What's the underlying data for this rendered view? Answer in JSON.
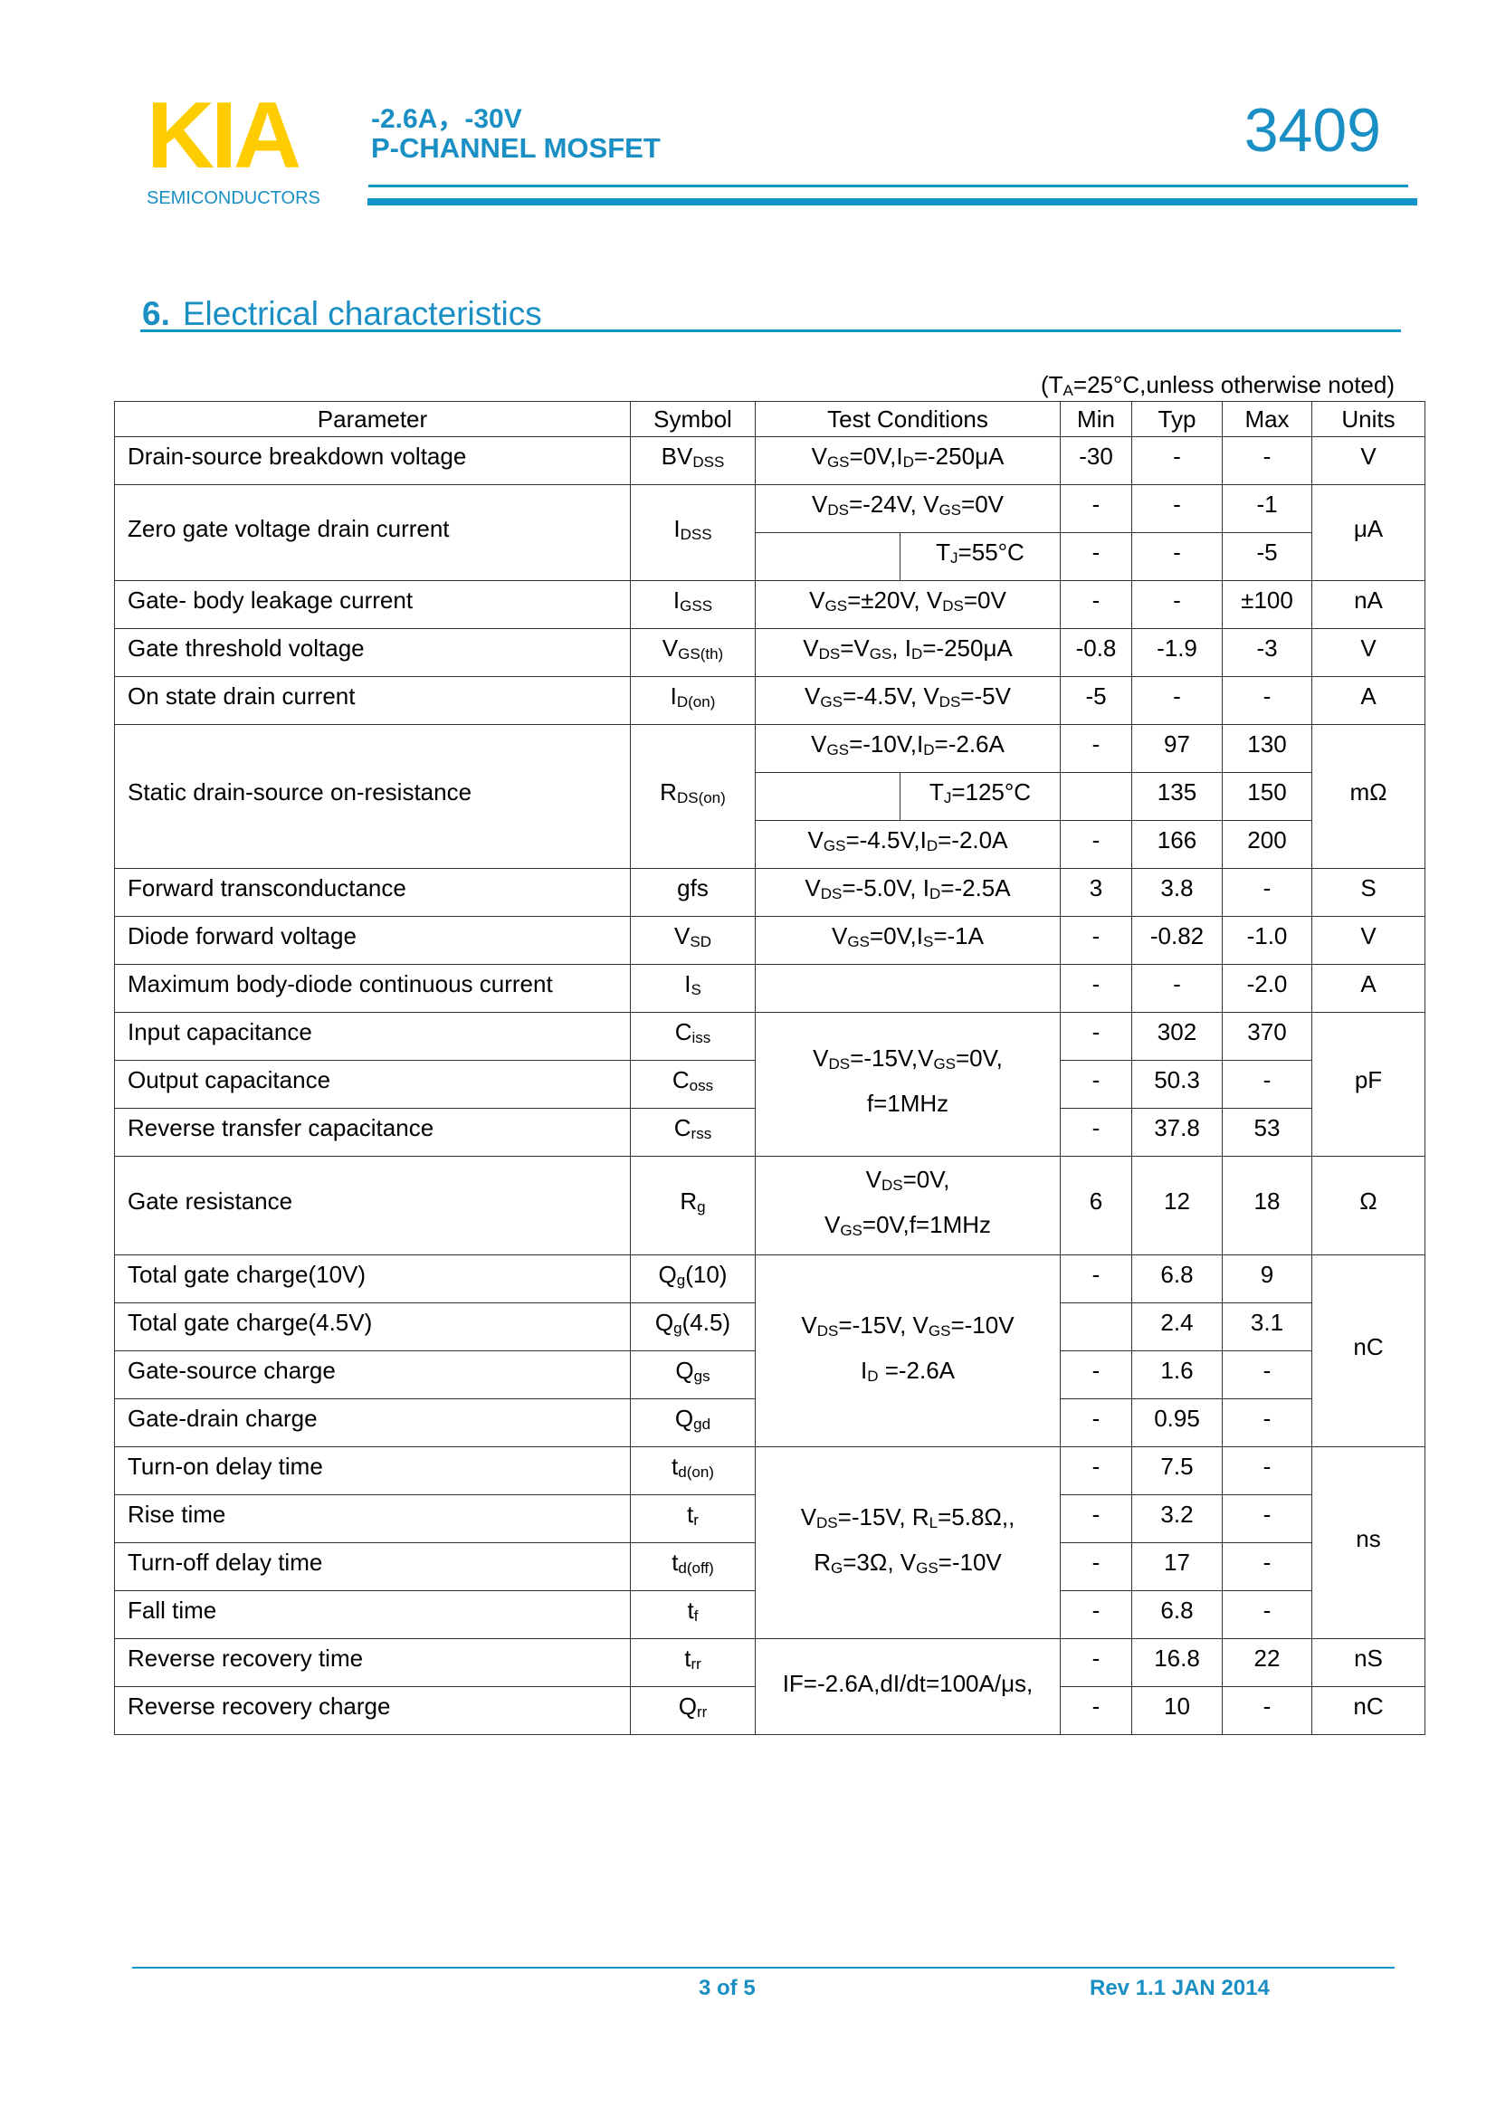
{
  "header": {
    "logo": "KIA",
    "logo_sub": "SEMICONDUCTORS",
    "spec_line1": "-2.6A，-30V",
    "spec_line2": "P-CHANNEL MOSFET",
    "part_number": "3409"
  },
  "section": {
    "number": "6.",
    "title": "Electrical characteristics"
  },
  "note": [
    {
      "t": "(T"
    },
    {
      "sub": "A"
    },
    {
      "t": "=25°C,unless otherwise noted)"
    }
  ],
  "colors": {
    "brand_blue": "#1a8fc4",
    "logo_yellow": "#FFCC00"
  },
  "table": {
    "headers": [
      "Parameter",
      "Symbol",
      "Test Conditions",
      "Min",
      "Typ",
      "Max",
      "Units"
    ],
    "rows": [
      {
        "param": "Drain-source breakdown voltage",
        "sym": [
          {
            "t": "BV"
          },
          {
            "sub": "DSS"
          }
        ],
        "cond": [
          {
            "t": "V"
          },
          {
            "sub": "GS"
          },
          {
            "t": "=0V,I"
          },
          {
            "sub": "D"
          },
          {
            "t": "=-250μA"
          }
        ],
        "min": "-30",
        "typ": "-",
        "max": "-",
        "unit": "V"
      },
      {
        "param": "Zero gate voltage drain current",
        "sym": [
          {
            "t": "I"
          },
          {
            "sub": "DSS"
          }
        ],
        "cond": [
          {
            "t": "V"
          },
          {
            "sub": "DS"
          },
          {
            "t": "=-24V, V"
          },
          {
            "sub": "GS"
          },
          {
            "t": "=0V"
          }
        ],
        "min": "-",
        "typ": "-",
        "max": "-1",
        "unit": "μA",
        "cond2": [
          {
            "t": "T"
          },
          {
            "sub": "J"
          },
          {
            "t": "=55°C"
          }
        ],
        "min2": "-",
        "typ2": "-",
        "max2": "-5"
      },
      {
        "param": "Gate- body leakage current",
        "sym": [
          {
            "t": "I"
          },
          {
            "sub": "GSS"
          }
        ],
        "cond": [
          {
            "t": "V"
          },
          {
            "sub": "GS"
          },
          {
            "t": "=±20V, V"
          },
          {
            "sub": "DS"
          },
          {
            "t": "=0V"
          }
        ],
        "min": "-",
        "typ": "-",
        "max": "±100",
        "unit": "nA"
      },
      {
        "param": "Gate threshold voltage",
        "sym": [
          {
            "t": "V"
          },
          {
            "sub": "GS(th)"
          }
        ],
        "cond": [
          {
            "t": "V"
          },
          {
            "sub": "DS"
          },
          {
            "t": "=V"
          },
          {
            "sub": "GS"
          },
          {
            "t": ", I"
          },
          {
            "sub": "D"
          },
          {
            "t": "=-250μA"
          }
        ],
        "min": "-0.8",
        "typ": "-1.9",
        "max": "-3",
        "unit": "V"
      },
      {
        "param": "On state drain current",
        "sym": [
          {
            "t": "I"
          },
          {
            "sub": "D(on)"
          }
        ],
        "cond": [
          {
            "t": "V"
          },
          {
            "sub": "GS"
          },
          {
            "t": "=-4.5V, V"
          },
          {
            "sub": "DS"
          },
          {
            "t": "=-5V"
          }
        ],
        "min": "-5",
        "typ": "-",
        "max": "-",
        "unit": "A"
      },
      {
        "param": "Static drain-source on-resistance",
        "sym": [
          {
            "t": "R"
          },
          {
            "sub": "DS(on)"
          }
        ],
        "cond": [
          {
            "t": "V"
          },
          {
            "sub": "GS"
          },
          {
            "t": "=-10V,I"
          },
          {
            "sub": "D"
          },
          {
            "t": "=-2.6A"
          }
        ],
        "min": "-",
        "typ": "97",
        "max": "130",
        "unit": "mΩ",
        "cond2": [
          {
            "t": "T"
          },
          {
            "sub": "J"
          },
          {
            "t": "=125°C"
          }
        ],
        "min2": "",
        "typ2": "135",
        "max2": "150",
        "cond3": [
          {
            "t": "V"
          },
          {
            "sub": "GS"
          },
          {
            "t": "=-4.5V,I"
          },
          {
            "sub": "D"
          },
          {
            "t": "=-2.0A"
          }
        ],
        "min3": "-",
        "typ3": "166",
        "max3": "200"
      },
      {
        "param": "Forward transconductance",
        "sym": [
          {
            "t": "gfs"
          }
        ],
        "cond": [
          {
            "t": "V"
          },
          {
            "sub": "DS"
          },
          {
            "t": "=-5.0V, I"
          },
          {
            "sub": "D"
          },
          {
            "t": "=-2.5A"
          }
        ],
        "min": "3",
        "typ": "3.8",
        "max": "-",
        "unit": "S"
      },
      {
        "param": "Diode forward voltage",
        "sym": [
          {
            "t": "V"
          },
          {
            "sub": "SD"
          }
        ],
        "cond": [
          {
            "t": "V"
          },
          {
            "sub": "GS"
          },
          {
            "t": "=0V,I"
          },
          {
            "sub": "S"
          },
          {
            "t": "=-1A"
          }
        ],
        "min": "-",
        "typ": "-0.82",
        "max": "-1.0",
        "unit": "V"
      },
      {
        "param": "Maximum body-diode continuous current",
        "sym": [
          {
            "t": "I"
          },
          {
            "sub": "S"
          }
        ],
        "cond": [],
        "min": "-",
        "typ": "-",
        "max": "-2.0",
        "unit": "A"
      },
      {
        "param": "Input capacitance",
        "sym": [
          {
            "t": "C"
          },
          {
            "sub": "iss"
          }
        ],
        "min": "-",
        "typ": "302",
        "max": "370",
        "unit": "pF",
        "cond_lines": [
          [
            {
              "t": "V"
            },
            {
              "sub": "DS"
            },
            {
              "t": "=-15V,V"
            },
            {
              "sub": "GS"
            },
            {
              "t": "=0V,"
            }
          ],
          [
            {
              "t": "f=1MHz"
            }
          ]
        ]
      },
      {
        "param": "Output capacitance",
        "sym": [
          {
            "t": "C"
          },
          {
            "sub": "oss"
          }
        ],
        "min": "-",
        "typ": "50.3",
        "max": "-"
      },
      {
        "param": "Reverse transfer capacitance",
        "sym": [
          {
            "t": "C"
          },
          {
            "sub": "rss"
          }
        ],
        "min": "-",
        "typ": "37.8",
        "max": "53"
      },
      {
        "param": "Gate resistance",
        "sym": [
          {
            "t": "R"
          },
          {
            "sub": "g"
          }
        ],
        "min": "6",
        "typ": "12",
        "max": "18",
        "unit": "Ω",
        "cond_lines": [
          [
            {
              "t": "V"
            },
            {
              "sub": "DS"
            },
            {
              "t": "=0V,"
            }
          ],
          [
            {
              "t": "V"
            },
            {
              "sub": "GS"
            },
            {
              "t": "=0V,f=1MHz"
            }
          ]
        ]
      },
      {
        "param": "Total gate charge(10V)",
        "sym": [
          {
            "t": "Q"
          },
          {
            "sub": "g"
          },
          {
            "t": "(10)"
          }
        ],
        "min": "-",
        "typ": "6.8",
        "max": "9",
        "unit": "nC",
        "cond_lines": [
          [
            {
              "t": "V"
            },
            {
              "sub": "DS"
            },
            {
              "t": "=-15V, V"
            },
            {
              "sub": "GS"
            },
            {
              "t": "=-10V"
            }
          ],
          [
            {
              "t": "I"
            },
            {
              "sub": "D"
            },
            {
              "t": " =-2.6A"
            }
          ]
        ]
      },
      {
        "param": "Total gate charge(4.5V)",
        "sym": [
          {
            "t": "Q"
          },
          {
            "sub": "g"
          },
          {
            "t": "(4.5)"
          }
        ],
        "min": "",
        "typ": "2.4",
        "max": "3.1"
      },
      {
        "param": "Gate-source charge",
        "sym": [
          {
            "t": "Q"
          },
          {
            "sub": "gs"
          }
        ],
        "min": "-",
        "typ": "1.6",
        "max": "-"
      },
      {
        "param": "Gate-drain charge",
        "sym": [
          {
            "t": "Q"
          },
          {
            "sub": "gd"
          }
        ],
        "min": "-",
        "typ": "0.95",
        "max": "-"
      },
      {
        "param": "Turn-on delay time",
        "sym": [
          {
            "t": "t"
          },
          {
            "sub": "d(on)"
          }
        ],
        "min": "-",
        "typ": "7.5",
        "max": "-",
        "unit": "ns",
        "cond_lines": [
          [
            {
              "t": "V"
            },
            {
              "sub": "DS"
            },
            {
              "t": "=-15V, R"
            },
            {
              "sub": "L"
            },
            {
              "t": "=5.8Ω,,"
            }
          ],
          [
            {
              "t": "R"
            },
            {
              "sub": "G"
            },
            {
              "t": "=3Ω, V"
            },
            {
              "sub": "GS"
            },
            {
              "t": "=-10V"
            }
          ]
        ]
      },
      {
        "param": "Rise time",
        "sym": [
          {
            "t": "t"
          },
          {
            "sub": "r"
          }
        ],
        "min": "-",
        "typ": "3.2",
        "max": "-"
      },
      {
        "param": "Turn-off delay time",
        "sym": [
          {
            "t": "t"
          },
          {
            "sub": "d(off)"
          }
        ],
        "min": "-",
        "typ": "17",
        "max": "-"
      },
      {
        "param": "Fall time",
        "sym": [
          {
            "t": "t"
          },
          {
            "sub": "f"
          }
        ],
        "min": "-",
        "typ": "6.8",
        "max": "-"
      },
      {
        "param": "Reverse recovery time",
        "sym": [
          {
            "t": "t"
          },
          {
            "sub": "rr"
          }
        ],
        "min": "-",
        "typ": "16.8",
        "max": "22",
        "unit": "nS",
        "cond_lines": [
          [
            {
              "t": "IF=-2.6A,dI/dt=100A/μs,"
            }
          ]
        ]
      },
      {
        "param": "Reverse recovery charge",
        "sym": [
          {
            "t": "Q"
          },
          {
            "sub": "rr"
          }
        ],
        "min": "-",
        "typ": "10",
        "max": "-",
        "unit": "nC"
      }
    ]
  },
  "footer": {
    "page": "3 of 5",
    "revision": "Rev 1.1 JAN 2014"
  }
}
